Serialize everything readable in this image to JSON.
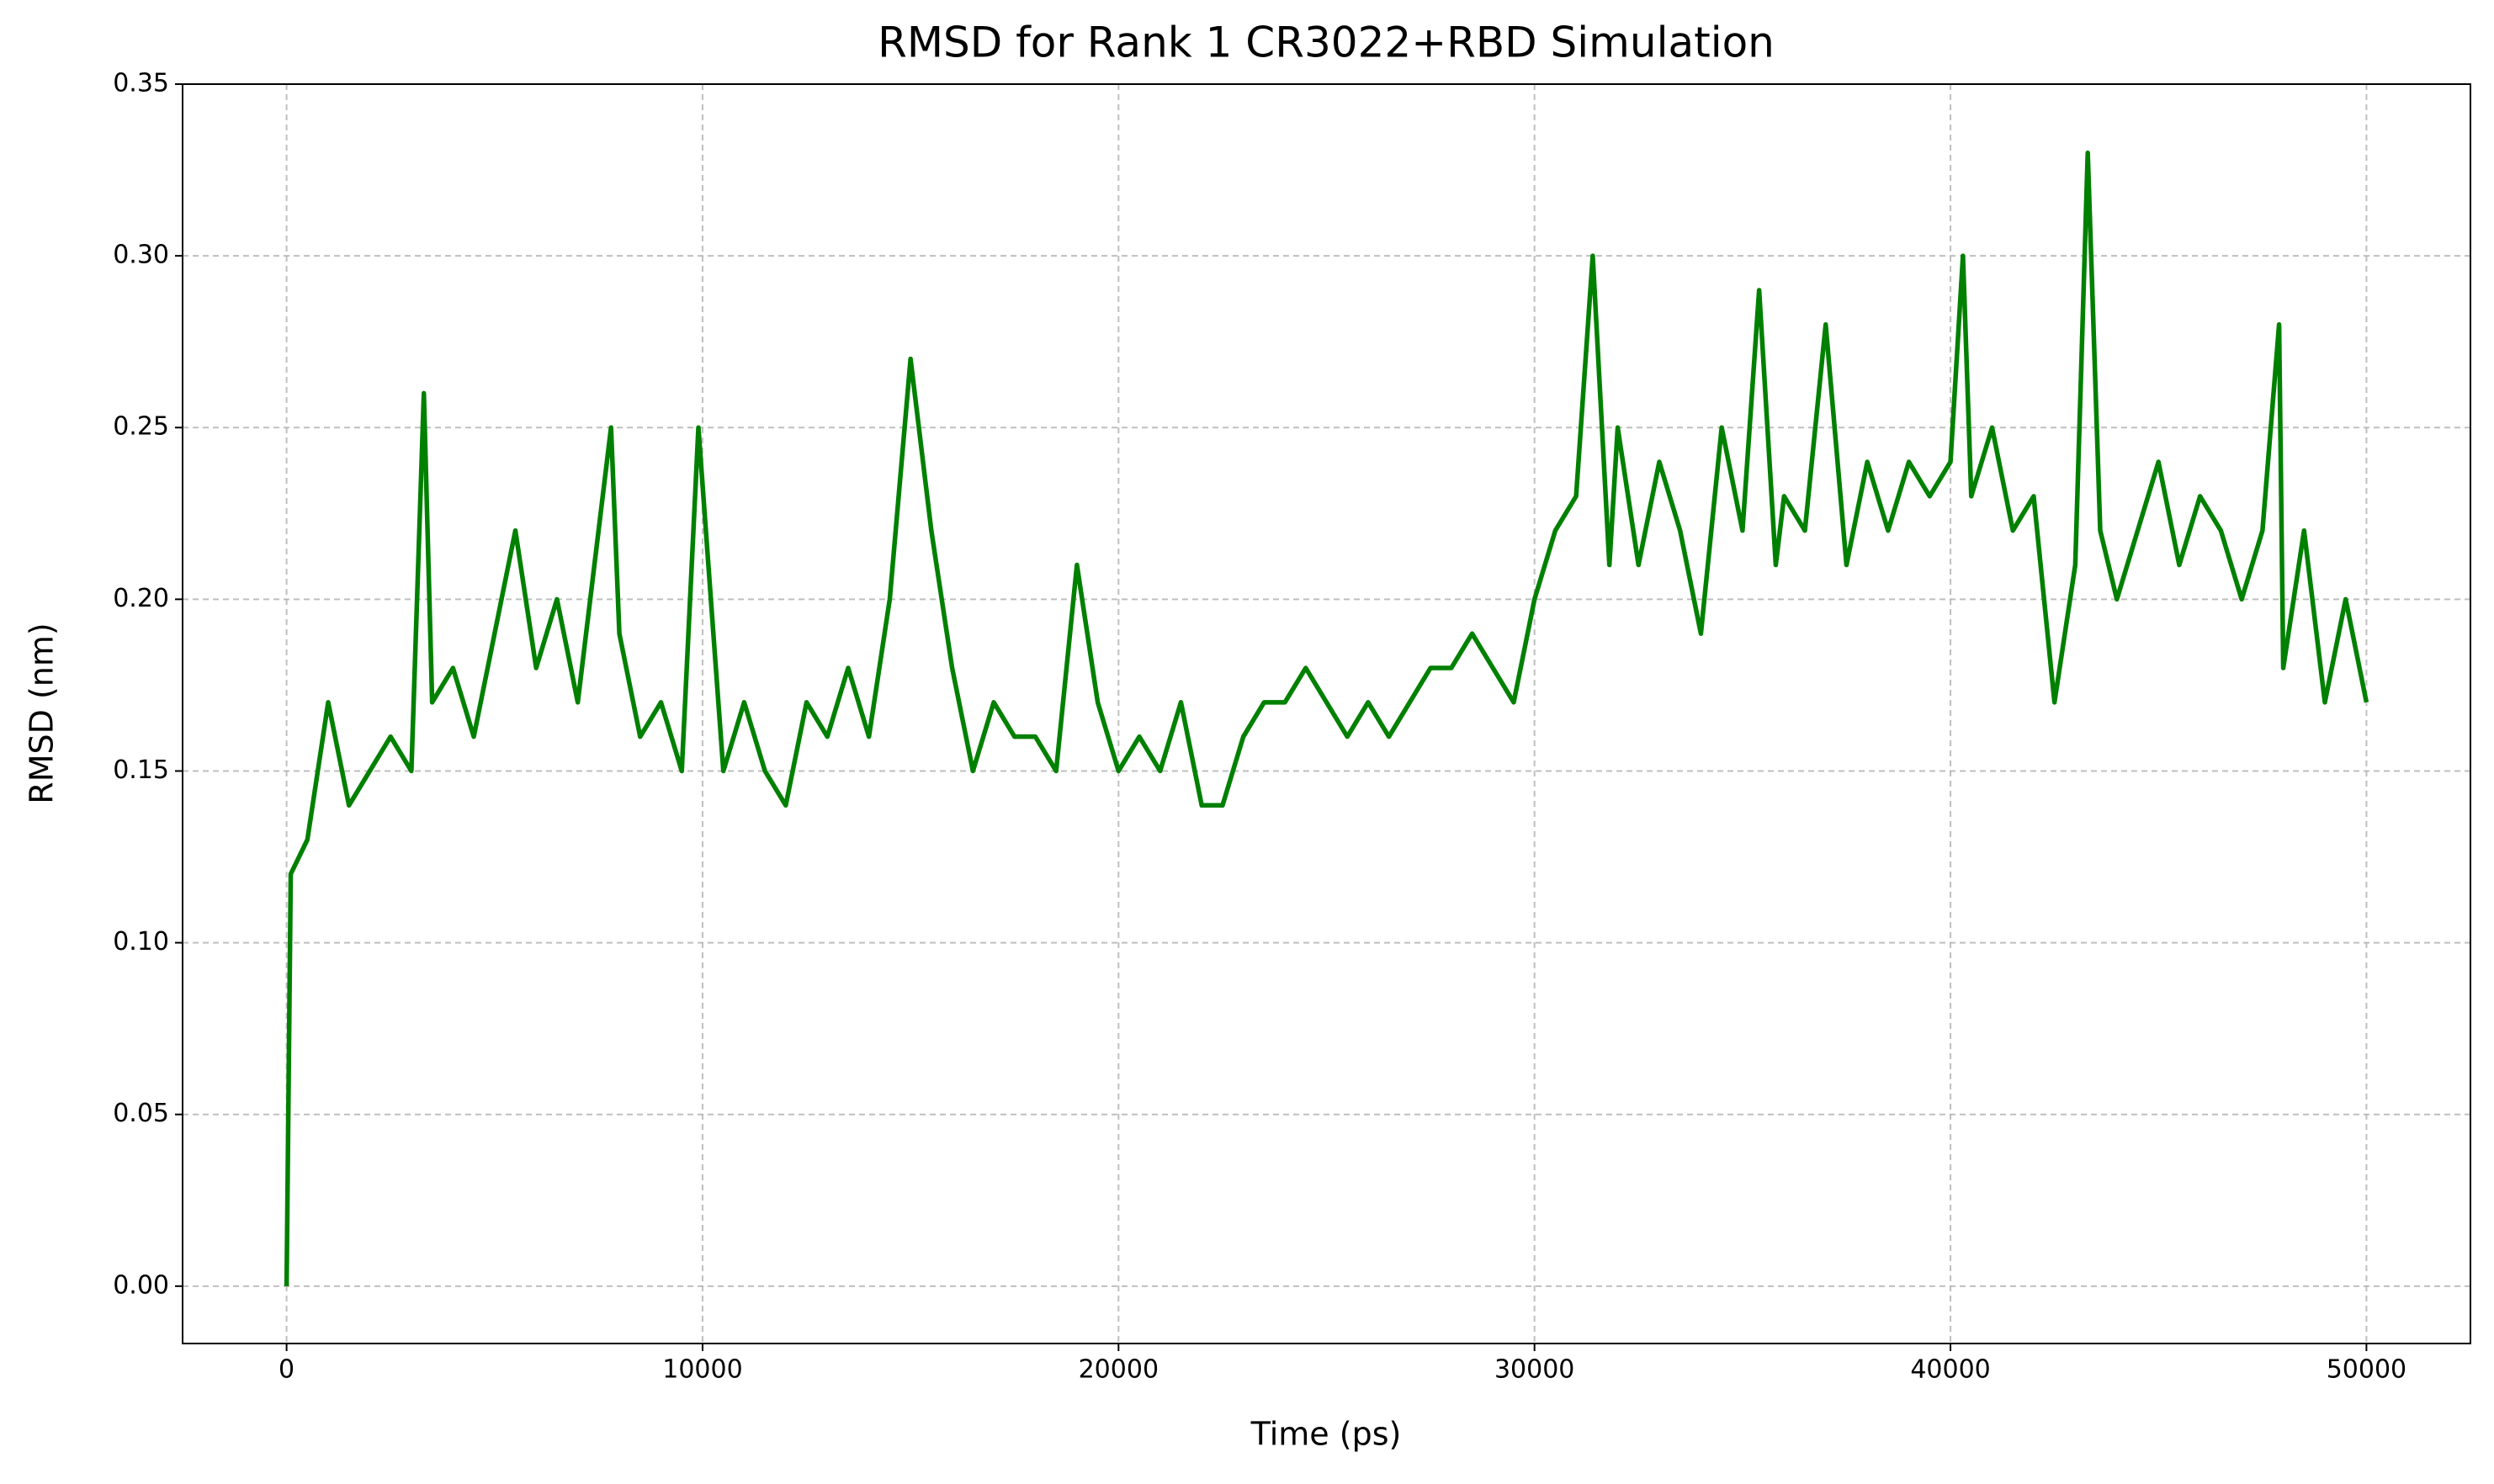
{
  "chart_data": {
    "type": "line",
    "title": "RMSD for Rank 1 CR3022+RBD Simulation",
    "x_label": "Time (ps)",
    "y_label": "RMSD (nm)",
    "x": [
      0,
      100,
      500,
      1000,
      1500,
      2000,
      2500,
      3000,
      3300,
      3500,
      4000,
      4500,
      5000,
      5500,
      6000,
      6500,
      7000,
      7500,
      7800,
      8000,
      8500,
      9000,
      9500,
      9900,
      10500,
      11000,
      11500,
      12000,
      12500,
      13000,
      13500,
      14000,
      14500,
      15000,
      15500,
      16000,
      16500,
      17000,
      17500,
      18000,
      18500,
      19000,
      19500,
      20000,
      20500,
      21000,
      21500,
      22000,
      22500,
      23000,
      23500,
      24000,
      24500,
      25000,
      25500,
      26000,
      26500,
      27000,
      27500,
      28000,
      28500,
      29000,
      29500,
      30000,
      30500,
      31000,
      31400,
      31800,
      32000,
      32500,
      33000,
      33500,
      34000,
      34500,
      35000,
      35400,
      35800,
      36000,
      36500,
      37000,
      37500,
      38000,
      38500,
      39000,
      39500,
      40000,
      40300,
      40500,
      41000,
      41500,
      42000,
      42500,
      43000,
      43300,
      43600,
      44000,
      44500,
      45000,
      45500,
      46000,
      46500,
      47000,
      47500,
      47900,
      48000,
      48500,
      49000,
      49500,
      50000
    ],
    "values": [
      0.0,
      0.12,
      0.13,
      0.17,
      0.14,
      0.15,
      0.16,
      0.15,
      0.26,
      0.17,
      0.18,
      0.16,
      0.19,
      0.22,
      0.18,
      0.2,
      0.17,
      0.22,
      0.25,
      0.19,
      0.16,
      0.17,
      0.15,
      0.25,
      0.15,
      0.17,
      0.15,
      0.14,
      0.17,
      0.16,
      0.18,
      0.16,
      0.2,
      0.27,
      0.22,
      0.18,
      0.15,
      0.17,
      0.16,
      0.16,
      0.15,
      0.21,
      0.17,
      0.15,
      0.16,
      0.15,
      0.17,
      0.14,
      0.14,
      0.16,
      0.17,
      0.17,
      0.18,
      0.17,
      0.16,
      0.17,
      0.16,
      0.17,
      0.18,
      0.18,
      0.19,
      0.18,
      0.17,
      0.2,
      0.22,
      0.23,
      0.3,
      0.21,
      0.25,
      0.21,
      0.24,
      0.22,
      0.19,
      0.25,
      0.22,
      0.29,
      0.21,
      0.23,
      0.22,
      0.28,
      0.21,
      0.24,
      0.22,
      0.24,
      0.23,
      0.24,
      0.3,
      0.23,
      0.25,
      0.22,
      0.23,
      0.17,
      0.21,
      0.33,
      0.22,
      0.2,
      0.22,
      0.24,
      0.21,
      0.23,
      0.22,
      0.2,
      0.22,
      0.28,
      0.18,
      0.22,
      0.17,
      0.2,
      0.17
    ],
    "color": "#008000",
    "xlim": [
      -2500,
      52500
    ],
    "ylim": [
      -0.0167,
      0.35
    ],
    "xticks": [
      0,
      10000,
      20000,
      30000,
      40000,
      50000
    ],
    "yticks": [
      {
        "value": 0,
        "label": "0.00"
      },
      0.05,
      {
        "value": 0.1,
        "label": "0.10"
      },
      0.15,
      {
        "value": 0.2,
        "label": "0.20"
      },
      0.25,
      {
        "value": 0.3,
        "label": "0.30"
      },
      0.35
    ],
    "grid": true
  }
}
